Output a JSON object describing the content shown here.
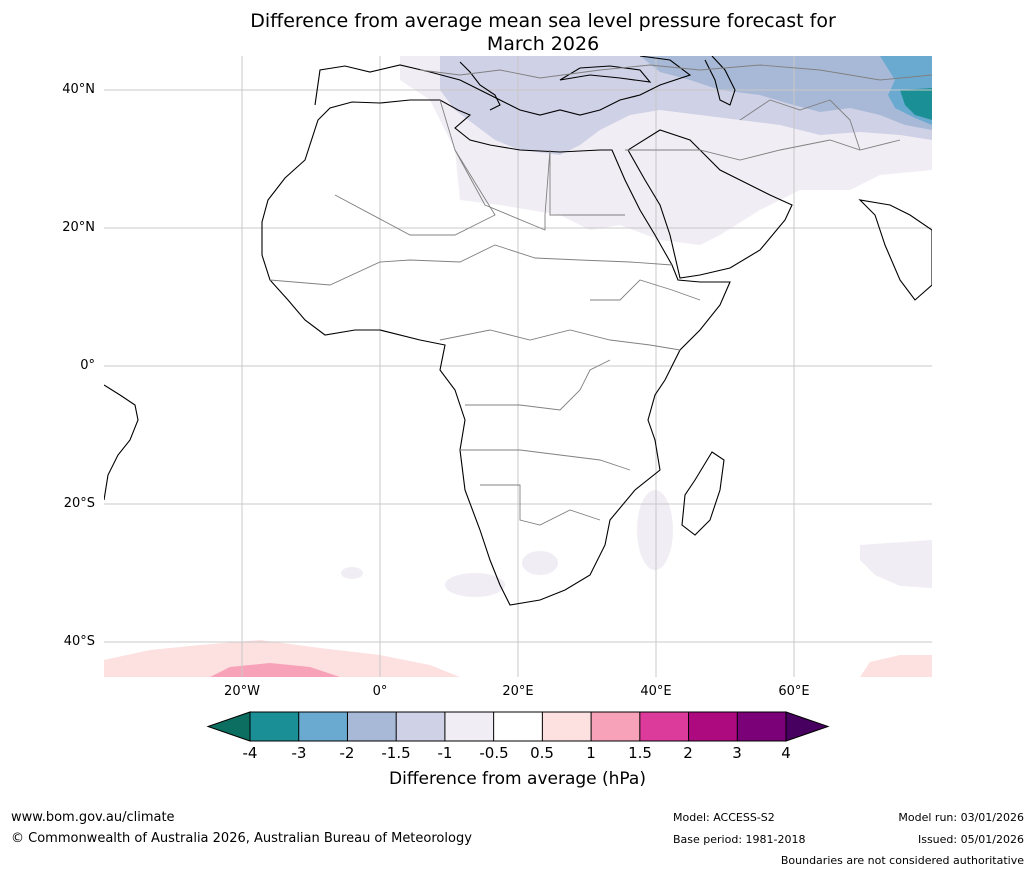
{
  "title": {
    "line1": "Difference from average mean sea level pressure forecast for",
    "line2": "March 2026"
  },
  "map": {
    "lat_labels": [
      "40°N",
      "20°N",
      "0°",
      "20°S",
      "40°S"
    ],
    "lon_labels": [
      "20°W",
      "0°",
      "20°E",
      "40°E",
      "60°E"
    ],
    "extent": {
      "lon_min": -40,
      "lon_max": 80,
      "lat_min": -45,
      "lat_max": 45
    }
  },
  "colorbar": {
    "ticks": [
      "-4",
      "-3",
      "-2",
      "-1.5",
      "-1",
      "-0.5",
      "0.5",
      "1",
      "1.5",
      "2",
      "3",
      "4"
    ],
    "colors": [
      "#1b8f96",
      "#6aaad0",
      "#a7b9d6",
      "#cfd1e6",
      "#f1edf4",
      "#ffffff",
      "#fde0e0",
      "#f7a2b9",
      "#dd3b9b",
      "#ad0a80",
      "#7a0177"
    ],
    "under_color": "#0c6e60",
    "over_color": "#47005f",
    "label": "Difference from average (hPa)"
  },
  "footer": {
    "url": "www.bom.gov.au/climate",
    "copyright": "© Commonwealth of Australia 2026, Australian Bureau of Meteorology",
    "model": "Model: ACCESS-S2",
    "base_period": "Base period: 1981-2018",
    "model_run": "Model run: 03/01/2026",
    "issued": "Issued: 05/01/2026",
    "disclaimer": "Boundaries are not considered authoritative"
  }
}
